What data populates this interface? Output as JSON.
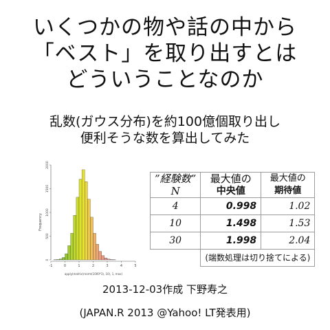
{
  "title": {
    "line1": "いくつかの物や話の中から",
    "line2": "「ベスト」を取り出すとは",
    "line3": "どういうことなのか"
  },
  "subtitle": {
    "line1": "乱数(ガウス分布)を約100億個取り出し",
    "line2": "便利そうな数を算出してみた"
  },
  "histogram": {
    "ylabel": "Frequency",
    "xlabel": "apply(matrix(rnorm(1000*3), 10), 1, max)",
    "yticks": [
      "0",
      "500",
      "1000",
      "1500",
      "2000"
    ],
    "xticks": [
      "-1",
      "0",
      "1",
      "2",
      "3",
      "4",
      "5"
    ],
    "bar_counts": [
      3,
      8,
      20,
      50,
      130,
      300,
      560,
      940,
      1320,
      1700,
      1900,
      1650,
      1280,
      900,
      560,
      330,
      180,
      90,
      40,
      18,
      8,
      3
    ],
    "bar_colors": [
      "#6fb23c",
      "#76b63a",
      "#7ebb36",
      "#88c033",
      "#94c632",
      "#a2cc30",
      "#b0d22e",
      "#bfd82c",
      "#cddd2a",
      "#dde22a",
      "#e8e22e",
      "#ecd83c",
      "#eecb4a",
      "#efbe58",
      "#efb266",
      "#eda772",
      "#ea9e7c",
      "#e69884",
      "#e2948a",
      "#df928e",
      "#dc9090",
      "#da8f92"
    ],
    "xmin": -1,
    "xmax": 5,
    "ymax": 2000
  },
  "table": {
    "header": {
      "col1": "”経験数”",
      "col1b": "N",
      "col2a": "最大値の",
      "col2b": "中央値",
      "col3a": "最大値の",
      "col3b": "期待値"
    },
    "rows": [
      {
        "n": "4",
        "median": "0.998",
        "expected": "1.02"
      },
      {
        "n": "10",
        "median": "1.498",
        "expected": "1.53"
      },
      {
        "n": "30",
        "median": "1.998",
        "expected": "2.04"
      }
    ],
    "note": "(端数処理は切り捨てによる)"
  },
  "credits": {
    "line1": "2013-12-03作成 下野寿之",
    "line2": "(JAPAN.R 2013 @Yahoo!  LT発表用)"
  }
}
